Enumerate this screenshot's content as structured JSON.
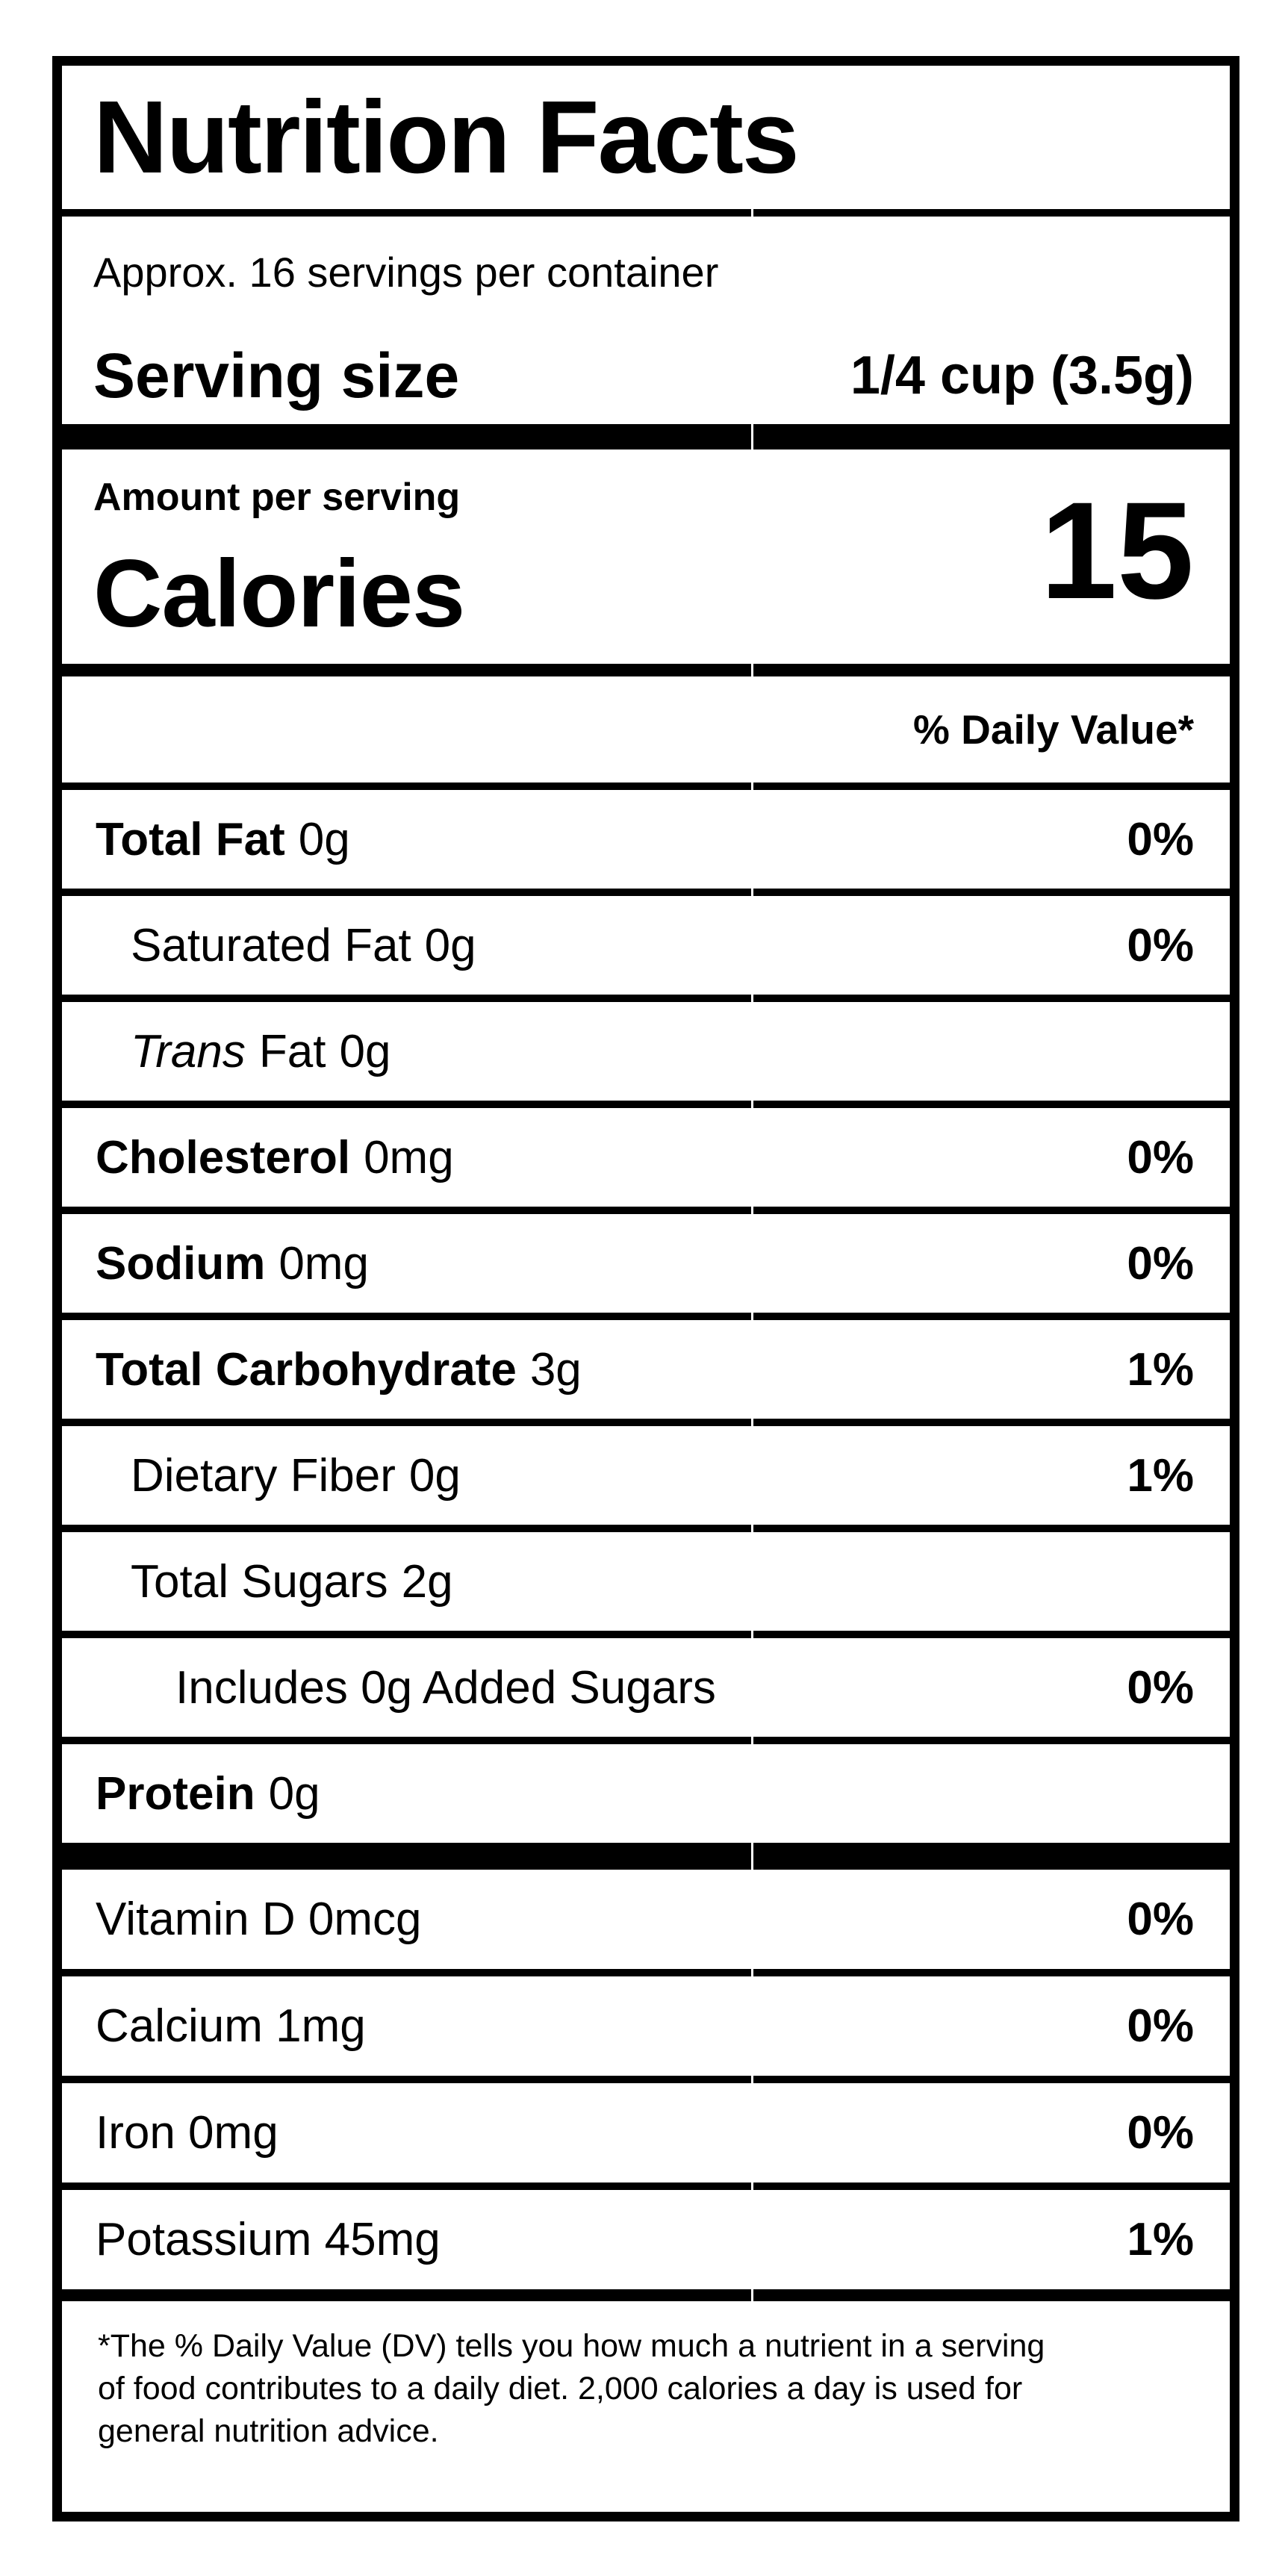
{
  "label": {
    "title": "Nutrition Facts",
    "servings_per_container": "Approx. 16 servings per container",
    "serving_size": {
      "label": "Serving size",
      "value": "1/4 cup (3.5g)"
    },
    "calories": {
      "header": "Amount per serving",
      "label": "Calories",
      "value": "15"
    },
    "daily_value_header": "% Daily Value*",
    "rows": [
      {
        "name": "Total Fat",
        "amount": "0g",
        "dv": "0%"
      },
      {
        "name": "Saturated Fat",
        "amount": "0g",
        "dv": "0%"
      },
      {
        "name": "Trans",
        "suffix": "Fat",
        "amount": "0g",
        "dv": ""
      },
      {
        "name": "Cholesterol",
        "amount": "0mg",
        "dv": "0%"
      },
      {
        "name": "Sodium",
        "amount": "0mg",
        "dv": "0%"
      },
      {
        "name": "Total Carbohydrate",
        "amount": "3g",
        "dv": "1%"
      },
      {
        "name": "Dietary Fiber",
        "amount": "0g",
        "dv": "1%"
      },
      {
        "name": "Total Sugars",
        "amount": "2g",
        "dv": ""
      },
      {
        "name": "Includes 0g Added Sugars",
        "amount": "",
        "dv": "0%"
      },
      {
        "name": "Protein",
        "amount": "0g",
        "dv": ""
      }
    ],
    "micronutrients": [
      {
        "name": "Vitamin D 0mcg",
        "dv": "0%"
      },
      {
        "name": "Calcium 1mg",
        "dv": "0%"
      },
      {
        "name": "Iron 0mg",
        "dv": "0%"
      },
      {
        "name": "Potassium 45mg",
        "dv": "1%"
      }
    ],
    "footnote": {
      "lines": [
        "*The % Daily Value (DV) tells you how much a nutrient in a serving",
        "of food contributes to a daily diet. 2,000 calories a day is used for",
        "general nutrition advice."
      ]
    },
    "colors": {
      "ink": "#000000",
      "paper": "#ffffff"
    }
  }
}
